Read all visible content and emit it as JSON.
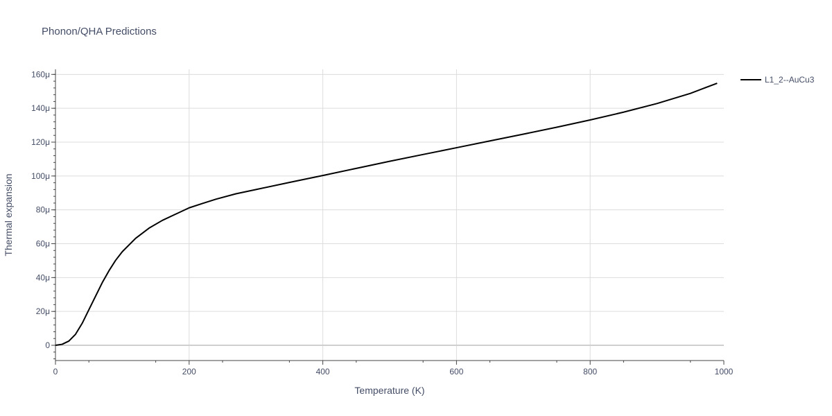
{
  "chart_data": {
    "type": "line",
    "title": "Phonon/QHA Predictions",
    "xlabel": "Temperature (K)",
    "ylabel": "Thermal expansion",
    "xlim": [
      0,
      1000
    ],
    "ylim": [
      -9e-06,
      0.000163
    ],
    "grid": true,
    "legend_position": "top-right",
    "x_ticks": [
      0,
      200,
      400,
      600,
      800,
      1000
    ],
    "x_tick_labels": [
      "0",
      "200",
      "400",
      "600",
      "800",
      "1000"
    ],
    "y_ticks": [
      0,
      2e-05,
      4e-05,
      6e-05,
      8e-05,
      0.0001,
      0.00012,
      0.00014,
      0.00016
    ],
    "y_tick_labels": [
      "0",
      "20μ",
      "40μ",
      "60μ",
      "80μ",
      "100μ",
      "120μ",
      "140μ",
      "160μ"
    ],
    "series": [
      {
        "name": "L1_2--AuCu3",
        "color": "#000000",
        "x": [
          0,
          10,
          20,
          30,
          40,
          50,
          60,
          70,
          80,
          90,
          100,
          120,
          140,
          160,
          180,
          200,
          220,
          240,
          270,
          300,
          350,
          400,
          450,
          500,
          550,
          600,
          650,
          700,
          750,
          800,
          850,
          900,
          950,
          990
        ],
        "y": [
          0,
          6e-07,
          2.5e-06,
          6.5e-06,
          1.3e-05,
          2.1e-05,
          2.9e-05,
          3.7e-05,
          4.4e-05,
          5.02e-05,
          5.53e-05,
          6.32e-05,
          6.92e-05,
          7.38e-05,
          7.75e-05,
          8.12e-05,
          8.38e-05,
          8.63e-05,
          8.95e-05,
          9.2e-05,
          9.62e-05,
          0.0001003,
          0.0001045,
          0.0001087,
          0.0001127,
          0.0001167,
          0.0001207,
          0.0001247,
          0.0001288,
          0.0001331,
          0.0001377,
          0.0001428,
          0.0001488,
          0.0001548
        ]
      }
    ]
  }
}
